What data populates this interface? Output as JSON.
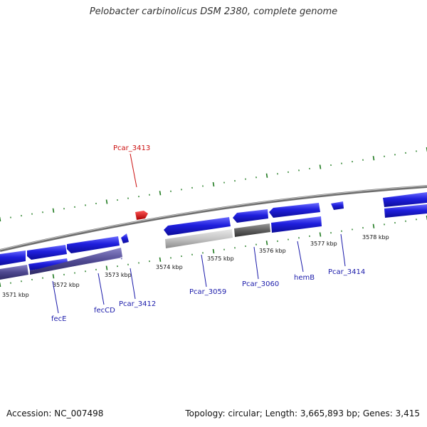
{
  "title": "Pelobacter carbinolicus DSM 2380, complete genome",
  "footer": {
    "accession": "Accession: NC_007498",
    "summary": "Topology: circular; Length: 3,665,893 bp; Genes: 3,415"
  },
  "colors": {
    "forward_gene": "#1f1fdd",
    "reverse_gene": "#1a1acc",
    "operon_purple": "#4e4890",
    "light_gray": "#c4c4c4",
    "dark_gray": "#606060",
    "highlight_red": "#dd1111",
    "label_blue": "#1a1aaa",
    "label_red": "#cc1111",
    "tick_green": "#1f7a1f",
    "backbone": "#8a8a8a"
  },
  "kbp_labels": [
    "3571 kbp",
    "3572 kbp",
    "3573 kbp",
    "3574 kbp",
    "3575 kbp",
    "3576 kbp",
    "3577 kbp",
    "3578 kbp"
  ],
  "gene_labels": {
    "fecE": "fecE",
    "fecCD": "fecCD",
    "Pcar_3412": "Pcar_3412",
    "Pcar_3059": "Pcar_3059",
    "Pcar_3060": "Pcar_3060",
    "hemB": "hemB",
    "Pcar_3414": "Pcar_3414",
    "Pcar_3413": "Pcar_3413"
  }
}
